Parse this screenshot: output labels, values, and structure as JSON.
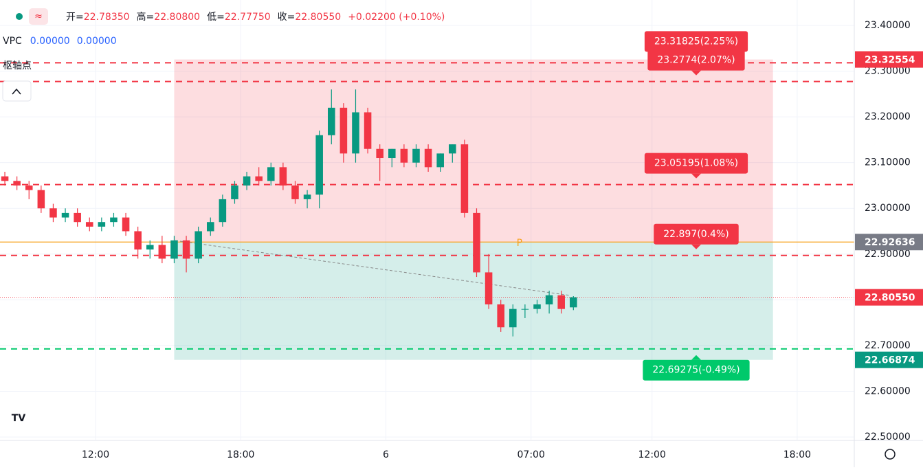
{
  "chart_data": {
    "type": "candlestick",
    "header": [
      {
        "label": "开=",
        "value": "22.78350"
      },
      {
        "label": "高=",
        "value": "22.80800"
      },
      {
        "label": "低=",
        "value": "22.77750"
      },
      {
        "label": "收=",
        "value": "22.80550"
      },
      {
        "label": "",
        "value": "+0.02200 (+0.10%)"
      }
    ],
    "indicators": [
      {
        "name": "VPC",
        "values": [
          "0.00000",
          "0.00000"
        ]
      },
      {
        "name": "枢轴点"
      }
    ],
    "up_color": "#089981",
    "down_color": "#f23645",
    "x": [
      -3.75,
      -3.25,
      -2.75,
      -2.25,
      -1.75,
      -1.25,
      -0.75,
      -0.25,
      0.25,
      0.75,
      1.25,
      1.75,
      2.25,
      2.75,
      3.25,
      3.75,
      4.25,
      4.75,
      5.25,
      5.75,
      6.25,
      6.75,
      7.25,
      7.75,
      8.25,
      8.75,
      9.25,
      9.75,
      10.25,
      10.75,
      11.25,
      11.75,
      12.25,
      12.75,
      13.25,
      13.75,
      14.25,
      14.75,
      15.25,
      15.75,
      16.25,
      16.75,
      17.25,
      17.75,
      18.25,
      18.75,
      19.25,
      19.75
    ],
    "open": [
      23.07,
      23.06,
      23.05,
      23.04,
      23.0,
      22.98,
      22.99,
      22.97,
      22.96,
      22.97,
      22.98,
      22.95,
      22.91,
      22.92,
      22.89,
      22.93,
      22.89,
      22.95,
      22.97,
      23.02,
      23.05,
      23.07,
      23.06,
      23.09,
      23.05,
      23.02,
      23.03,
      23.16,
      23.22,
      23.12,
      23.21,
      23.13,
      23.11,
      23.13,
      23.1,
      23.13,
      23.09,
      23.12,
      23.14,
      22.99,
      22.86,
      22.79,
      22.74,
      22.78,
      22.78,
      22.79,
      22.81,
      22.7835
    ],
    "high": [
      23.08,
      23.07,
      23.06,
      23.05,
      23.01,
      23.0,
      23.0,
      22.98,
      22.98,
      22.99,
      22.99,
      22.96,
      22.93,
      22.94,
      22.94,
      22.94,
      22.96,
      22.98,
      23.03,
      23.06,
      23.08,
      23.09,
      23.1,
      23.1,
      23.06,
      23.04,
      23.17,
      23.26,
      23.23,
      23.26,
      23.22,
      23.14,
      23.13,
      23.14,
      23.14,
      23.14,
      23.12,
      23.14,
      23.15,
      23.0,
      22.9,
      22.8,
      22.79,
      22.79,
      22.8,
      22.82,
      22.82,
      22.808
    ],
    "low": [
      23.05,
      23.04,
      23.02,
      22.99,
      22.97,
      22.97,
      22.96,
      22.95,
      22.95,
      22.96,
      22.94,
      22.89,
      22.89,
      22.88,
      22.88,
      22.86,
      22.88,
      22.94,
      22.96,
      23.01,
      23.04,
      23.05,
      23.05,
      23.04,
      23.01,
      23.0,
      23.0,
      23.14,
      23.1,
      23.1,
      23.12,
      23.06,
      23.09,
      23.09,
      23.09,
      23.08,
      23.08,
      23.1,
      22.98,
      22.85,
      22.78,
      22.73,
      22.72,
      22.76,
      22.77,
      22.77,
      22.77,
      22.7775
    ],
    "close": [
      23.06,
      23.05,
      23.04,
      23.0,
      22.98,
      22.99,
      22.97,
      22.96,
      22.97,
      22.98,
      22.95,
      22.91,
      22.92,
      22.89,
      22.93,
      22.89,
      22.95,
      22.97,
      23.02,
      23.05,
      23.07,
      23.06,
      23.09,
      23.05,
      23.02,
      23.03,
      23.16,
      23.22,
      23.12,
      23.21,
      23.13,
      23.11,
      23.13,
      23.1,
      23.13,
      23.09,
      23.12,
      23.14,
      22.99,
      22.86,
      22.79,
      22.74,
      22.78,
      22.78,
      22.79,
      22.81,
      22.78,
      22.8055
    ],
    "last_price_label": "22.80550",
    "xlim": [
      -3.95,
      31.36
    ],
    "ylim": [
      22.494,
      23.4556
    ],
    "xticks": [
      {
        "value": 0,
        "label": "12:00"
      },
      {
        "value": 6,
        "label": "18:00"
      },
      {
        "value": 12,
        "label": "6"
      },
      {
        "value": 18,
        "label": "07:00"
      },
      {
        "value": 23,
        "label": "12:00"
      },
      {
        "value": 29,
        "label": "18:00"
      }
    ],
    "yticks": [
      {
        "value": 23.4,
        "label": "23.40000"
      },
      {
        "value": 23.3,
        "label": "23.30000"
      },
      {
        "value": 23.2,
        "label": "23.20000"
      },
      {
        "value": 23.1,
        "label": "23.10000"
      },
      {
        "value": 23.0,
        "label": "23.00000"
      },
      {
        "value": 22.9,
        "label": "22.90000"
      },
      {
        "value": 22.8,
        "label": "22.80000"
      },
      {
        "value": 22.7,
        "label": "22.70000"
      },
      {
        "value": 22.6,
        "label": "22.60000"
      },
      {
        "value": 22.5,
        "label": "22.50000"
      }
    ],
    "grid": true,
    "zone": {
      "xlim": [
        3.25,
        28.0
      ],
      "top": {
        "value": 23.32554,
        "label": "23.32554"
      },
      "pivot": {
        "value": 22.92636,
        "label": "22.92636",
        "marker": "P",
        "marker_x": 17.4
      },
      "bottom": {
        "value": 22.66874,
        "label": "22.66874"
      }
    },
    "levels": [
      {
        "value": 23.2774,
        "label": "23.2774(2.07%)",
        "color": "#f23645"
      },
      {
        "value": 23.31825,
        "label": "23.31825(2.25%)",
        "color": "#f23645"
      },
      {
        "value": 23.05195,
        "label": "23.05195(1.08%)",
        "color": "#f23645"
      },
      {
        "value": 22.897,
        "label": "22.897(0.4%)",
        "color": "#f23645"
      },
      {
        "value": 22.69275,
        "label": "22.69275(-0.49%)",
        "color": "#00c96b"
      }
    ]
  }
}
